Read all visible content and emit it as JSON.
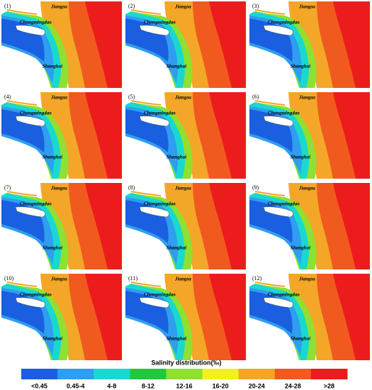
{
  "panels": [
    {
      "label": "(1)",
      "north": "Jiangsu",
      "island": "Chongmingdao",
      "south": "Shanghai"
    },
    {
      "label": "(2)",
      "north": "Jiangsu",
      "island": "Chongmingdao",
      "south": "Shanghai"
    },
    {
      "label": "(3)",
      "north": "Jiangsu",
      "island": "Chongmingdao",
      "south": "Shanghai"
    },
    {
      "label": "(4)",
      "north": "Jiangsu",
      "island": "Chongmingdao",
      "south": "Shanghai"
    },
    {
      "label": "(5)",
      "north": "Jiangsu",
      "island": "Chongmingdao",
      "south": "Shanghai"
    },
    {
      "label": "(6)",
      "north": "Jiangsu",
      "island": "Chongmingdao",
      "south": "Shanghai"
    },
    {
      "label": "(7)",
      "north": "Jiangsu",
      "island": "Chongmingdao",
      "south": "Shanghai"
    },
    {
      "label": "(8)",
      "north": "Jiangsu",
      "island": "Chongmingdao",
      "south": "Shanghai"
    },
    {
      "label": "(9)",
      "north": "Jiangsu",
      "island": "Chongmingdao",
      "south": "Shanghai"
    },
    {
      "label": "(10)",
      "north": "Jiangsu",
      "island": "Chongmingdao",
      "south": "Shanghai"
    },
    {
      "label": "(11)",
      "north": "Jiangsu",
      "island": "Chongmingdao",
      "south": "Shanghai"
    },
    {
      "label": "(12)",
      "north": "Jiangsu",
      "island": "Chongmingdao",
      "south": "Shanghai"
    }
  ],
  "legend": {
    "title": "Salinity distribution(‰)",
    "items": [
      {
        "label": "<0.45",
        "color": "#1a5fe0"
      },
      {
        "label": "0.45-4",
        "color": "#2f9df0"
      },
      {
        "label": "4-8",
        "color": "#19d8d0"
      },
      {
        "label": "8-12",
        "color": "#22c83a"
      },
      {
        "label": "12-16",
        "color": "#8fe030"
      },
      {
        "label": "16-20",
        "color": "#f2f21a"
      },
      {
        "label": "20-24",
        "color": "#f4a628"
      },
      {
        "label": "24-28",
        "color": "#f05a1e"
      },
      {
        "label": ">28",
        "color": "#ec1c1c"
      }
    ]
  }
}
